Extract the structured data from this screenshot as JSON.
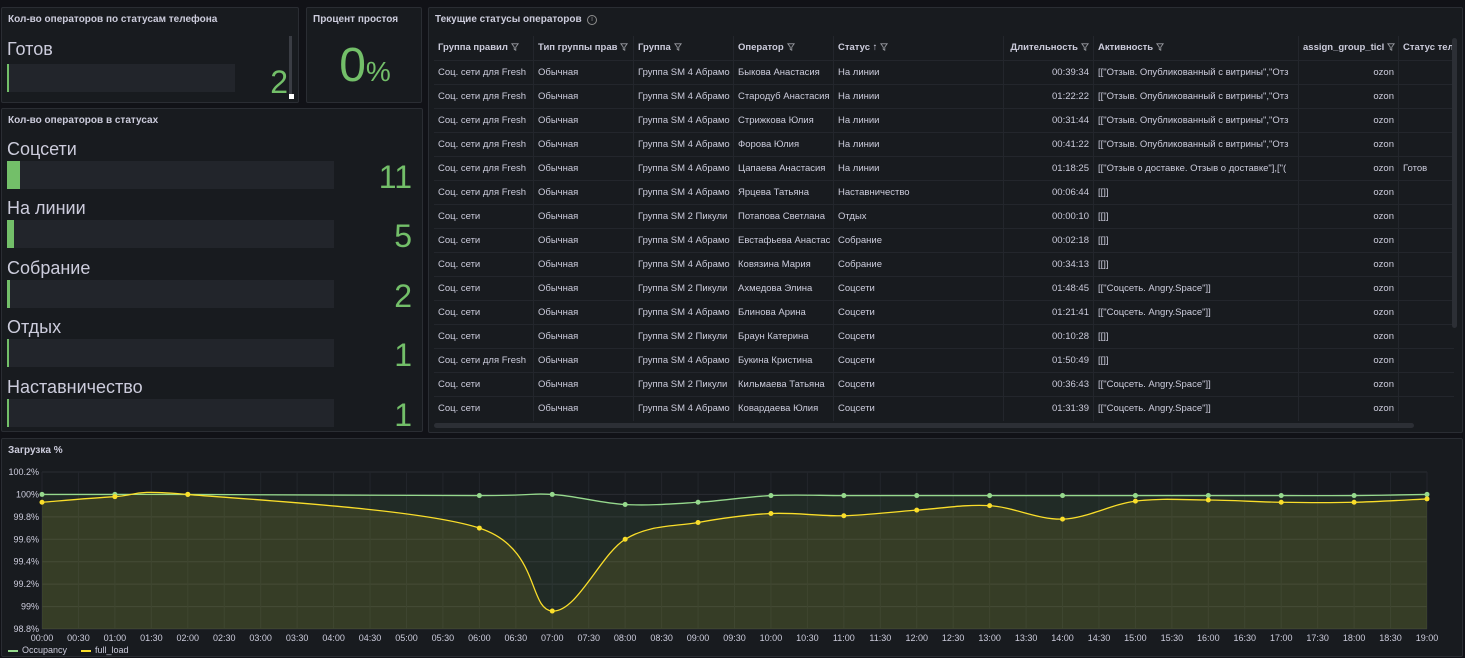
{
  "phone_panel": {
    "title": "Кол-во операторов по статусам телефона",
    "label": "Готов",
    "value": "2",
    "fill": 0.01
  },
  "idle_panel": {
    "title": "Процент простоя",
    "value": "0",
    "unit": "%"
  },
  "status_panel": {
    "title": "Кол-во операторов в статусах",
    "items": [
      {
        "label": "Соцсети",
        "value": "11",
        "fill": 0.04
      },
      {
        "label": "На линии",
        "value": "5",
        "fill": 0.02
      },
      {
        "label": "Собрание",
        "value": "2",
        "fill": 0.01
      },
      {
        "label": "Отдых",
        "value": "1",
        "fill": 0.005
      },
      {
        "label": "Наставничество",
        "value": "1",
        "fill": 0.005
      }
    ]
  },
  "table_panel": {
    "title": "Текущие статусы операторов",
    "columns": [
      "Группа правил",
      "Тип группы прав",
      "Группа",
      "Оператор",
      "Статус",
      "Длительность",
      "Активность",
      "assign_group_ticl",
      "Статус теле"
    ],
    "sort_icon": "↑",
    "rows": [
      [
        "Соц. сети для Fresh",
        "Обычная",
        "Группа SM 4 Абрамо",
        "Быкова Анастасия",
        "На линии",
        "00:39:34",
        "[[\"Отзыв. Опубликованный с витрины\",\"Отз",
        "ozon",
        ""
      ],
      [
        "Соц. сети для Fresh",
        "Обычная",
        "Группа SM 4 Абрамо",
        "Стародуб Анастасия",
        "На линии",
        "01:22:22",
        "[[\"Отзыв. Опубликованный с витрины\",\"Отз",
        "ozon",
        ""
      ],
      [
        "Соц. сети для Fresh",
        "Обычная",
        "Группа SM 4 Абрамо",
        "Стрижкова Юлия",
        "На линии",
        "00:31:44",
        "[[\"Отзыв. Опубликованный с витрины\",\"Отз",
        "ozon",
        ""
      ],
      [
        "Соц. сети для Fresh",
        "Обычная",
        "Группа SM 4 Абрамо",
        "Форова Юлия",
        "На линии",
        "00:41:22",
        "[[\"Отзыв. Опубликованный с витрины\",\"Отз",
        "ozon",
        ""
      ],
      [
        "Соц. сети для Fresh",
        "Обычная",
        "Группа SM 4 Абрамо",
        "Цапаева Анастасия",
        "На линии",
        "01:18:25",
        "[[\"Отзыв о доставке. Отзыв о доставке\"],[\"(",
        "ozon",
        "Готов"
      ],
      [
        "Соц. сети для Fresh",
        "Обычная",
        "Группа SM 4 Абрамо",
        "Ярцева Татьяна",
        "Наставничество",
        "00:06:44",
        "[[]]",
        "ozon",
        ""
      ],
      [
        "Соц. сети",
        "Обычная",
        "Группа SM 2 Пикули",
        "Потапова Светлана",
        "Отдых",
        "00:00:10",
        "[[]]",
        "ozon",
        ""
      ],
      [
        "Соц. сети",
        "Обычная",
        "Группа SM 4 Абрамо",
        "Евстафьева Анастас",
        "Собрание",
        "00:02:18",
        "[[]]",
        "ozon",
        ""
      ],
      [
        "Соц. сети",
        "Обычная",
        "Группа SM 4 Абрамо",
        "Ковязина Мария",
        "Собрание",
        "00:34:13",
        "[[]]",
        "ozon",
        ""
      ],
      [
        "Соц. сети",
        "Обычная",
        "Группа SM 2 Пикули",
        "Ахмедова Элина",
        "Соцсети",
        "01:48:45",
        "[[\"Соцсеть. Angry.Space\"]]",
        "ozon",
        ""
      ],
      [
        "Соц. сети",
        "Обычная",
        "Группа SM 4 Абрамо",
        "Блинова Арина",
        "Соцсети",
        "01:21:41",
        "[[\"Соцсеть. Angry.Space\"]]",
        "ozon",
        ""
      ],
      [
        "Соц. сети",
        "Обычная",
        "Группа SM 2 Пикули",
        "Браун Катерина",
        "Соцсети",
        "00:10:28",
        "[[]]",
        "ozon",
        ""
      ],
      [
        "Соц. сети для Fresh",
        "Обычная",
        "Группа SM 4 Абрамо",
        "Букина Кристина",
        "Соцсети",
        "01:50:49",
        "[[]]",
        "ozon",
        ""
      ],
      [
        "Соц. сети",
        "Обычная",
        "Группа SM 2 Пикули",
        "Кильмаева Татьяна",
        "Соцсети",
        "00:36:43",
        "[[\"Соцсеть. Angry.Space\"]]",
        "ozon",
        ""
      ],
      [
        "Соц. сети",
        "Обычная",
        "Группа SM 4 Абрамо",
        "Ковардаева Юлия",
        "Соцсети",
        "01:31:39",
        "[[\"Соцсеть. Angry.Space\"]]",
        "ozon",
        ""
      ]
    ]
  },
  "chart_panel": {
    "title": "Загрузка %"
  },
  "chart_data": {
    "type": "area",
    "title": "Загрузка %",
    "y_ticks": [
      "100.2%",
      "100%",
      "99.8%",
      "99.6%",
      "99.4%",
      "99.2%",
      "99%",
      "98.8%"
    ],
    "ylim": [
      98.8,
      100.2
    ],
    "x_ticks": [
      "00:00",
      "00:30",
      "01:00",
      "01:30",
      "02:00",
      "02:30",
      "03:00",
      "03:30",
      "04:00",
      "04:30",
      "05:00",
      "05:30",
      "06:00",
      "06:30",
      "07:00",
      "07:30",
      "08:00",
      "08:30",
      "09:00",
      "09:30",
      "10:00",
      "10:30",
      "11:00",
      "11:30",
      "12:00",
      "12:30",
      "13:00",
      "13:30",
      "14:00",
      "14:30",
      "15:00",
      "15:30",
      "16:00",
      "16:30",
      "17:00",
      "17:30",
      "18:00",
      "18:30",
      "19:00"
    ],
    "series": [
      {
        "name": "Occupancy",
        "color": "#96d98d",
        "points": [
          [
            0,
            100.0
          ],
          [
            1,
            100.0
          ],
          [
            2,
            100.0
          ],
          [
            6,
            99.99
          ],
          [
            7,
            100.0
          ],
          [
            8,
            99.91
          ],
          [
            9,
            99.93
          ],
          [
            10,
            99.99
          ],
          [
            11,
            99.99
          ],
          [
            12,
            99.99
          ],
          [
            13,
            99.99
          ],
          [
            14,
            99.99
          ],
          [
            15,
            99.99
          ],
          [
            16,
            99.99
          ],
          [
            17,
            99.99
          ],
          [
            18,
            99.99
          ],
          [
            19,
            100.0
          ]
        ]
      },
      {
        "name": "full_load",
        "color": "#fade2a",
        "points": [
          [
            0,
            99.93
          ],
          [
            1,
            99.98
          ],
          [
            2,
            100.0
          ],
          [
            6,
            99.7
          ],
          [
            7,
            98.96
          ],
          [
            8,
            99.6
          ],
          [
            9,
            99.75
          ],
          [
            10,
            99.83
          ],
          [
            11,
            99.81
          ],
          [
            12,
            99.86
          ],
          [
            13,
            99.9
          ],
          [
            14,
            99.78
          ],
          [
            15,
            99.94
          ],
          [
            16,
            99.95
          ],
          [
            17,
            99.93
          ],
          [
            18,
            99.93
          ],
          [
            19,
            99.96
          ]
        ]
      }
    ],
    "legend_position": "bottom-left",
    "grid": true
  },
  "colors": {
    "accent_green": "#73bf69",
    "background": "#111217",
    "panel": "#181b1f"
  }
}
